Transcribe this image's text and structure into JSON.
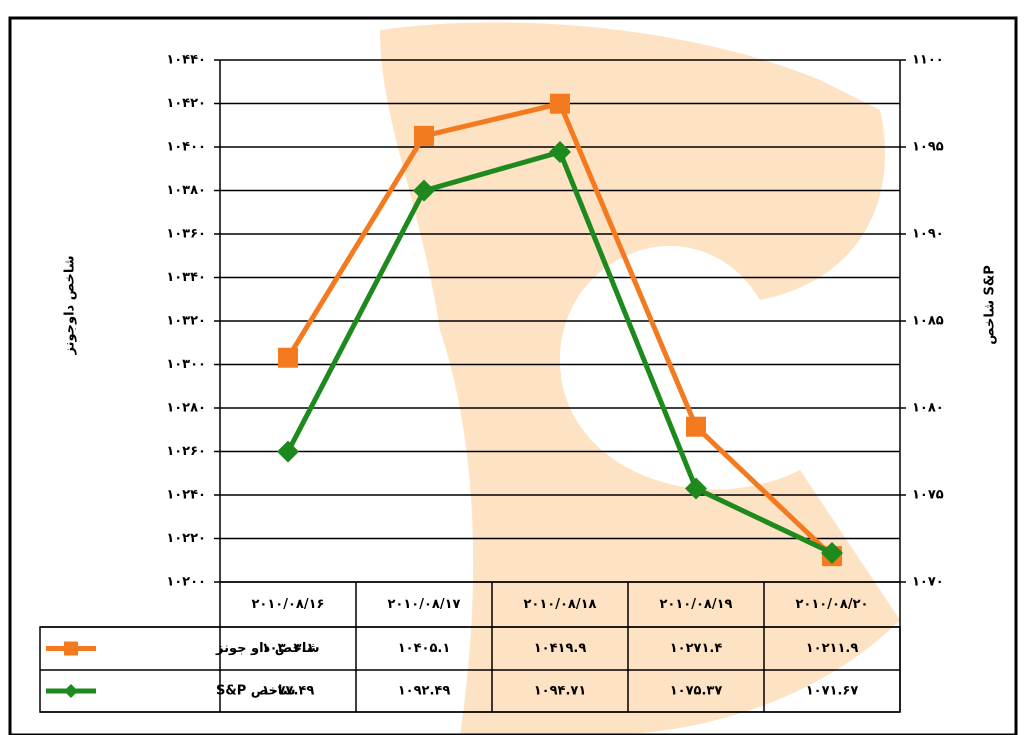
{
  "chart_data": {
    "type": "line",
    "categories": [
      "۲۰۱۰/۰۸/۱۶",
      "۲۰۱۰/۰۸/۱۷",
      "۲۰۱۰/۰۸/۱۸",
      "۲۰۱۰/۰۸/۱۹",
      "۲۰۱۰/۰۸/۲۰"
    ],
    "y_label": "شاخص داوجونز",
    "y2_label": "شاخص S&P",
    "series": [
      {
        "name": "شاخص داو جونز",
        "color": "#f47a20",
        "marker": "square",
        "values": [
          10303.1,
          10405.1,
          10419.9,
          10271.4,
          10211.9
        ],
        "value_labels": [
          "۱۰۳۰۳.۱",
          "۱۰۴۰۵.۱",
          "۱۰۴۱۹.۹",
          "۱۰۲۷۱.۴",
          "۱۰۲۱۱.۹"
        ]
      },
      {
        "name": "شاخص S&P",
        "color": "#1e8a1e",
        "marker": "diamond",
        "axis": "y2",
        "values": [
          1077.49,
          1092.49,
          1094.71,
          1075.37,
          1071.67
        ],
        "value_labels": [
          "۱۰۷۷.۴۹",
          "۱۰۹۲.۴۹",
          "۱۰۹۴.۷۱",
          "۱۰۷۵.۳۷",
          "۱۰۷۱.۶۷"
        ]
      }
    ],
    "ylim": [
      10200,
      10440
    ],
    "yticks": [
      {
        "value": 10200,
        "label": "۱۰۲۰۰"
      },
      {
        "value": 10220,
        "label": "۱۰۲۲۰"
      },
      {
        "value": 10240,
        "label": "۱۰۲۴۰"
      },
      {
        "value": 10260,
        "label": "۱۰۲۶۰"
      },
      {
        "value": 10280,
        "label": "۱۰۲۸۰"
      },
      {
        "value": 10300,
        "label": "۱۰۳۰۰"
      },
      {
        "value": 10320,
        "label": "۱۰۳۲۰"
      },
      {
        "value": 10340,
        "label": "۱۰۳۴۰"
      },
      {
        "value": 10360,
        "label": "۱۰۳۶۰"
      },
      {
        "value": 10380,
        "label": "۱۰۳۸۰"
      },
      {
        "value": 10400,
        "label": "۱۰۴۰۰"
      },
      {
        "value": 10420,
        "label": "۱۰۴۲۰"
      },
      {
        "value": 10440,
        "label": "۱۰۴۴۰"
      }
    ],
    "y2lim": [
      1070,
      1100
    ],
    "y2ticks": [
      {
        "value": 1070,
        "label": "۱۰۷۰"
      },
      {
        "value": 1075,
        "label": "۱۰۷۵"
      },
      {
        "value": 1080,
        "label": "۱۰۸۰"
      },
      {
        "value": 1085,
        "label": "۱۰۸۵"
      },
      {
        "value": 1090,
        "label": "۱۰۹۰"
      },
      {
        "value": 1095,
        "label": "۱۰۹۵"
      },
      {
        "value": 1100,
        "label": "۱۱۰۰"
      }
    ],
    "grid": true
  }
}
